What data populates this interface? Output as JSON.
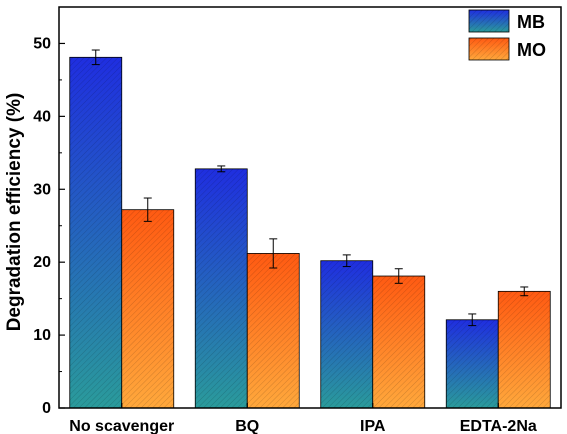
{
  "chart_data": {
    "type": "bar",
    "ylabel": "Degradation efficiency (%)",
    "xlabel": "",
    "ylim": [
      0,
      55
    ],
    "yticks": [
      0,
      10,
      20,
      30,
      40,
      50
    ],
    "categories": [
      "No scavenger",
      "BQ",
      "IPA",
      "EDTA-2Na"
    ],
    "series": [
      {
        "name": "MB",
        "values": [
          48.1,
          32.8,
          20.2,
          12.1
        ],
        "errors": [
          1.0,
          0.4,
          0.8,
          0.8
        ],
        "color_top": "#1f2ee0",
        "color_bottom": "#2a9b9b"
      },
      {
        "name": "MO",
        "values": [
          27.2,
          21.2,
          18.1,
          16.0
        ],
        "errors": [
          1.6,
          2.0,
          1.0,
          0.6
        ],
        "color_top": "#ff6a1a",
        "color_bottom": "#ffa63a"
      }
    ],
    "legend_position": "top-right",
    "grid": false
  }
}
